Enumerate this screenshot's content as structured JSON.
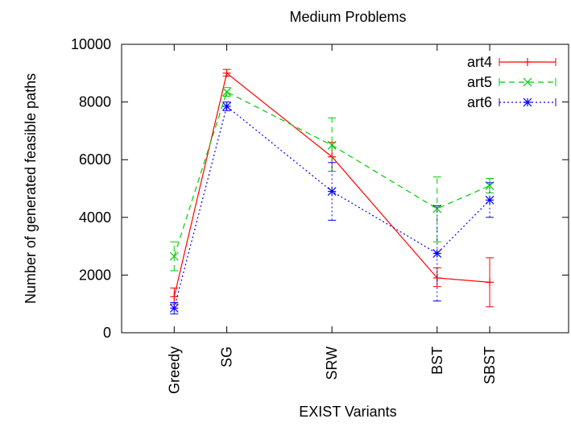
{
  "chart_data": {
    "type": "line",
    "title": "Medium Problems",
    "xlabel": "EXIST Variants",
    "ylabel": "Number of generated feasible paths",
    "ylim": [
      0,
      10000
    ],
    "yticks": [
      0,
      2000,
      4000,
      6000,
      8000,
      10000
    ],
    "x_scale": "categorical-nonuniform",
    "categories": [
      "Greedy",
      "SG",
      "SRW",
      "BST",
      "SBST"
    ],
    "category_positions": [
      0,
      1,
      3,
      5,
      6
    ],
    "xlim": [
      -1,
      7.5
    ],
    "grid": false,
    "legend": "top-right",
    "series": [
      {
        "name": "art4",
        "color": "#ff0000",
        "dash": "solid",
        "marker": "plus",
        "values": [
          1250,
          9000,
          6100,
          1900,
          1750
        ],
        "err_low": [
          1000,
          8900,
          5600,
          1600,
          900
        ],
        "err_high": [
          1550,
          9130,
          6600,
          2250,
          2600
        ]
      },
      {
        "name": "art5",
        "color": "#00cc00",
        "dash": "dashed",
        "marker": "cross",
        "values": [
          2650,
          8350,
          6500,
          4300,
          5100
        ],
        "err_low": [
          2150,
          8200,
          5600,
          3150,
          4850
        ],
        "err_high": [
          3150,
          8500,
          7450,
          5400,
          5350
        ]
      },
      {
        "name": "art6",
        "color": "#0000ff",
        "dash": "dotted",
        "marker": "star",
        "values": [
          850,
          7850,
          4900,
          2750,
          4600
        ],
        "err_low": [
          650,
          7700,
          3900,
          1100,
          4000
        ],
        "err_high": [
          1050,
          8000,
          5900,
          4400,
          5200
        ]
      }
    ]
  }
}
